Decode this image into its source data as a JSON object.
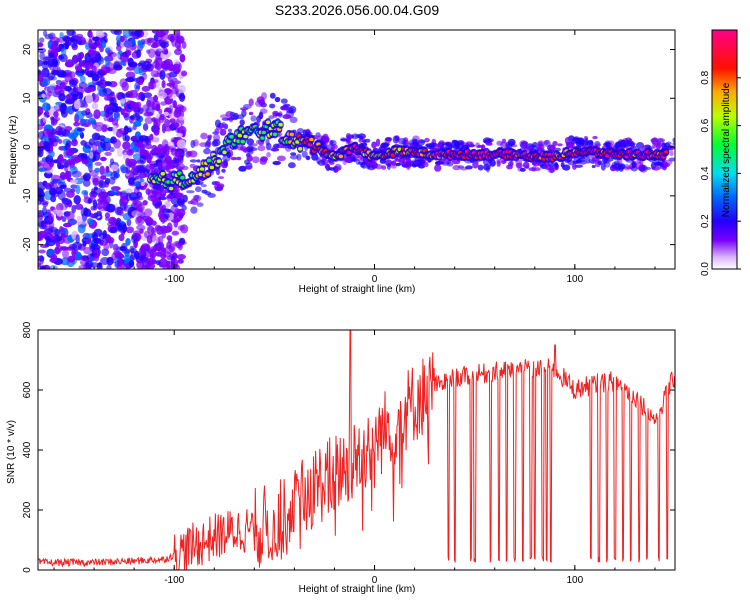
{
  "title": "S233.2026.056.00.04.G09",
  "chart_data": [
    {
      "type": "heatmap",
      "name": "spectrogram",
      "xlabel": "Height of straight line (km)",
      "ylabel": "Frequency (Hz)",
      "xlim": [
        -168,
        150
      ],
      "ylim": [
        -25,
        24
      ],
      "xticks": [
        -100,
        0,
        100
      ],
      "yticks": [
        -20,
        -10,
        0,
        10,
        20
      ],
      "colorbar": {
        "label": "Normalized spectral amplitude",
        "range": [
          0,
          1
        ],
        "ticks": [
          "0.0",
          "0.2",
          "0.4",
          "0.6",
          "0.8"
        ],
        "stops": [
          "#ffffff",
          "#b366ff",
          "#5c00e6",
          "#0000ff",
          "#00e5ff",
          "#00ff33",
          "#ccff00",
          "#ffaa00",
          "#ff0000",
          "#ff0077"
        ]
      },
      "ridge": {
        "x": [
          -112,
          -100,
          -90,
          -80,
          -70,
          -60,
          -50,
          -40,
          -30,
          -20,
          -10,
          0,
          10,
          20,
          30,
          40,
          50,
          60,
          70,
          80,
          90,
          100,
          110,
          120,
          130,
          145
        ],
        "freq": [
          -7,
          -7,
          -6,
          -3,
          2,
          3,
          4,
          1,
          0.5,
          -2,
          0,
          -2,
          -1,
          -1,
          -1.5,
          -1.5,
          -1.5,
          -1.5,
          -1.5,
          -2,
          -2,
          -1,
          -1,
          -1.5,
          -1.5,
          -1.5
        ],
        "amplitude": [
          0.55,
          0.55,
          0.6,
          0.55,
          0.5,
          0.5,
          0.55,
          0.6,
          0.8,
          0.65,
          0.85,
          0.6,
          0.7,
          0.75,
          0.75,
          0.85,
          0.88,
          0.9,
          0.85,
          0.85,
          0.8,
          0.8,
          0.85,
          0.85,
          0.85,
          0.8
        ]
      }
    },
    {
      "type": "line",
      "name": "snr",
      "xlabel": "Height of straight line (km)",
      "ylabel": "SNR (10 * v/v)",
      "xlim": [
        -168,
        150
      ],
      "ylim": [
        0,
        800
      ],
      "xticks": [
        -100,
        0,
        100
      ],
      "yticks": [
        0,
        200,
        400,
        600,
        800
      ],
      "color": "#ee2222",
      "envelope": {
        "x": [
          -168,
          -140,
          -120,
          -105,
          -100,
          -90,
          -80,
          -70,
          -60,
          -50,
          -40,
          -30,
          -20,
          -10,
          0,
          10,
          20,
          30,
          40,
          50,
          60,
          70,
          80,
          90,
          100,
          110,
          120,
          130,
          140,
          150
        ],
        "y": [
          25,
          25,
          30,
          35,
          50,
          80,
          110,
          130,
          140,
          150,
          200,
          280,
          320,
          370,
          430,
          500,
          560,
          610,
          640,
          650,
          660,
          665,
          670,
          670,
          600,
          620,
          630,
          580,
          500,
          650
        ]
      },
      "spikes": [
        {
          "x": -12,
          "y": 800
        },
        {
          "x": 90,
          "y": 750
        }
      ],
      "dropouts_x": [
        37,
        40,
        48,
        50,
        58,
        62,
        66,
        70,
        74,
        78,
        80,
        84,
        86,
        88,
        108,
        112,
        116,
        120,
        124,
        128,
        132,
        136,
        142,
        146
      ]
    }
  ]
}
